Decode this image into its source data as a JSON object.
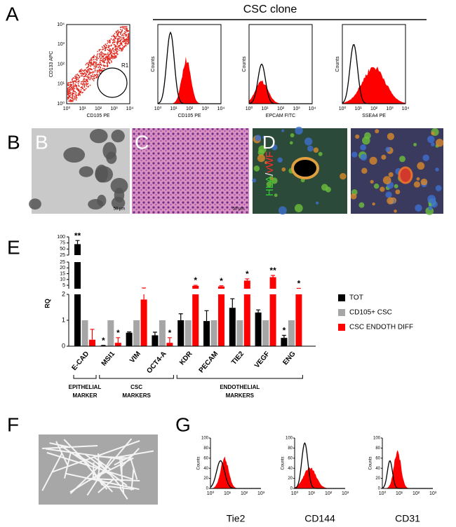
{
  "panel_labels": [
    "A",
    "B",
    "C",
    "D",
    "E",
    "F",
    "G"
  ],
  "flow": {
    "header": "CSC clone",
    "log_ticks": [
      "10⁰",
      "10¹",
      "10²",
      "10³",
      "10⁴"
    ],
    "dot_plot": {
      "y_label": "CD133 APC",
      "x_label": "CD105 PE",
      "gate": "R1"
    },
    "histograms": [
      {
        "y_label": "Counts",
        "x_label": "CD105 PE"
      },
      {
        "y_label": "Counts",
        "x_label": "EPCAM  FITC"
      },
      {
        "y_label": "Counts",
        "x_label": "SSEA4 PE"
      }
    ]
  },
  "micro": {
    "scale_bar": "50 μm",
    "stain": [
      "HLA",
      "/",
      "vWF"
    ]
  },
  "chart_data": {
    "type": "bar",
    "y_label": "RQ",
    "categories": [
      "E-CAD",
      "MSI1",
      "VIM",
      "OCT4-A",
      "KDR",
      "PECAM",
      "TIE2",
      "VEGF",
      "ENG"
    ],
    "series": [
      {
        "name": "TOT",
        "color": "#000000",
        "values": [
          70,
          0.02,
          0.52,
          0.42,
          1.0,
          0.97,
          1.48,
          1.3,
          0.32
        ],
        "errors": [
          15,
          0.01,
          0.03,
          0.12,
          0.25,
          0.4,
          0.35,
          0.1,
          0.1
        ],
        "significance": [
          "**",
          "*",
          null,
          null,
          null,
          null,
          null,
          null,
          "*"
        ]
      },
      {
        "name": "CD105+ CSC",
        "color": "#a6a6a6",
        "values": [
          1,
          1,
          1,
          1,
          1,
          1,
          1,
          1,
          1
        ]
      },
      {
        "name": "CSC ENDOTH DIFF",
        "color": "#ff0000",
        "values": [
          0.25,
          0.13,
          1.8,
          0.13,
          4.5,
          4,
          9,
          12,
          2.0
        ],
        "errors": [
          0.4,
          0.2,
          0.85,
          0.2,
          0.5,
          0.6,
          1.5,
          1.5,
          0.3
        ],
        "significance": [
          null,
          "*",
          null,
          "*",
          "*",
          "*",
          "*",
          "**",
          "*"
        ]
      }
    ],
    "y_segments": [
      {
        "ylim": [
          0,
          2
        ],
        "yticks": [
          0,
          1,
          2
        ]
      },
      {
        "ylim": [
          2,
          25
        ],
        "yticks": [
          5,
          10,
          15,
          20,
          25
        ]
      },
      {
        "ylim": [
          25,
          100
        ],
        "yticks": [
          25,
          50,
          75,
          100
        ]
      }
    ],
    "groups": [
      {
        "label": [
          "EPITHELIAL",
          "MARKER"
        ]
      },
      {
        "label": [
          "CSC",
          "MARKERS"
        ]
      },
      {
        "label": [
          "ENDOTHELIAL",
          "MARKERS"
        ]
      }
    ],
    "legend": "right"
  },
  "tube_histograms": {
    "y_label": "Counts",
    "yticks": [
      0,
      20,
      40,
      60,
      80,
      100
    ],
    "ylim": [
      0,
      100
    ],
    "labels": [
      "Tie2",
      "CD144",
      "CD31"
    ]
  }
}
